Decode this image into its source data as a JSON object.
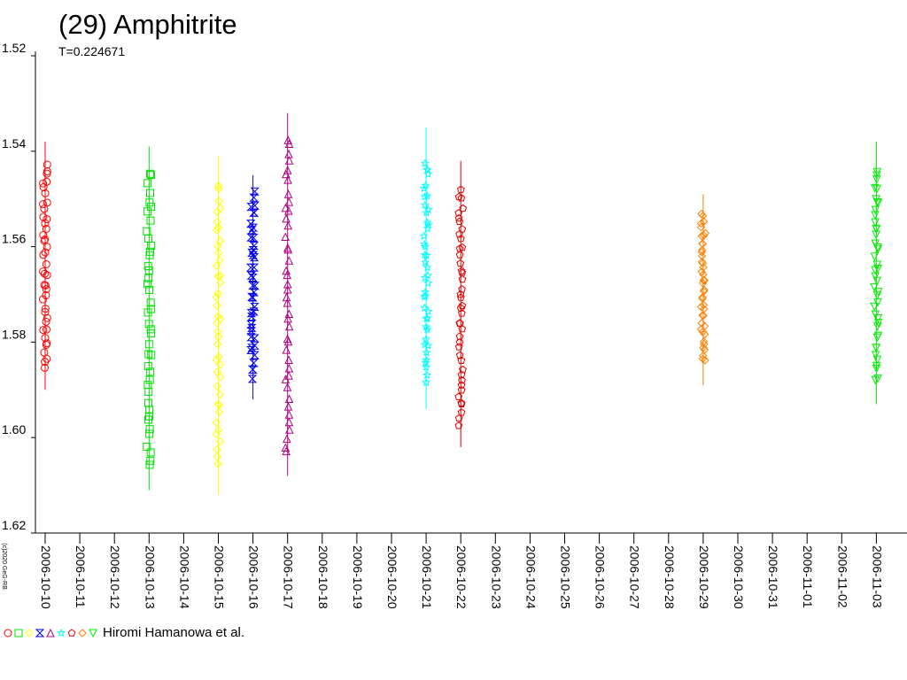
{
  "title": "(29) Amphitrite",
  "subtitle": "T=0.224671",
  "credit": "Hiromi Hamanowa et al.",
  "copyright": "(c)2020 GeG-RB",
  "chart_data": {
    "type": "scatter",
    "y_reversed": true,
    "ylim": [
      1.52,
      1.62
    ],
    "yticks": [
      "1.52",
      "1.54",
      "1.56",
      "1.58",
      "1.60",
      "1.62"
    ],
    "xlim": [
      "2006-10-10",
      "2006-11-04"
    ],
    "xticks": [
      "2006-10-10",
      "2006-10-11",
      "2006-10-12",
      "2006-10-13",
      "2006-10-14",
      "2006-10-15",
      "2006-10-16",
      "2006-10-17",
      "2006-10-18",
      "2006-10-19",
      "2006-10-20",
      "2006-10-21",
      "2006-10-22",
      "2006-10-23",
      "2006-10-24",
      "2006-10-25",
      "2006-10-26",
      "2006-10-27",
      "2006-10-28",
      "2006-10-29",
      "2006-10-30",
      "2006-10-31",
      "2006-11-01",
      "2006-11-02",
      "2006-11-03"
    ],
    "series": [
      {
        "date": "2006-10-10",
        "color": "#ff0000",
        "marker": "circle",
        "min": 1.543,
        "max": 1.585,
        "err_min": 1.538,
        "err_max": 1.59
      },
      {
        "date": "2006-10-13",
        "color": "#00e000",
        "marker": "square",
        "min": 1.544,
        "max": 1.606,
        "err_min": 1.539,
        "err_max": 1.611
      },
      {
        "date": "2006-10-15",
        "color": "#ffff00",
        "marker": "diamond",
        "min": 1.547,
        "max": 1.605,
        "err_min": 1.541,
        "err_max": 1.612
      },
      {
        "date": "2006-10-16",
        "color": "#0000ff",
        "marker": "hourglass",
        "min": 1.549,
        "max": 1.587,
        "err_min": 1.545,
        "err_max": 1.592
      },
      {
        "date": "2006-10-17",
        "color": "#b0007f",
        "marker": "triangle-up",
        "min": 1.537,
        "max": 1.603,
        "err_min": 1.532,
        "err_max": 1.608
      },
      {
        "date": "2006-10-21",
        "color": "#00ffff",
        "marker": "star",
        "min": 1.542,
        "max": 1.588,
        "err_min": 1.535,
        "err_max": 1.594
      },
      {
        "date": "2006-10-22",
        "color": "#e00000",
        "marker": "pentagon",
        "min": 1.548,
        "max": 1.597,
        "err_min": 1.542,
        "err_max": 1.602
      },
      {
        "date": "2006-10-29",
        "color": "#ff8000",
        "marker": "diamond",
        "min": 1.553,
        "max": 1.584,
        "err_min": 1.549,
        "err_max": 1.589
      },
      {
        "date": "2006-11-03",
        "color": "#00ee00",
        "marker": "triangle-down",
        "min": 1.544,
        "max": 1.588,
        "err_min": 1.538,
        "err_max": 1.593
      }
    ],
    "legend_markers": [
      {
        "marker": "circle",
        "color": "#ff0000"
      },
      {
        "marker": "square",
        "color": "#00e000"
      },
      {
        "marker": "diamond",
        "color": "#ffff00"
      },
      {
        "marker": "hourglass",
        "color": "#0000ff"
      },
      {
        "marker": "triangle-up",
        "color": "#b0007f"
      },
      {
        "marker": "star",
        "color": "#00ffff"
      },
      {
        "marker": "pentagon",
        "color": "#e00000"
      },
      {
        "marker": "diamond",
        "color": "#ff8000"
      },
      {
        "marker": "triangle-down",
        "color": "#00ee00"
      }
    ],
    "legend_position": "bottom-left"
  }
}
